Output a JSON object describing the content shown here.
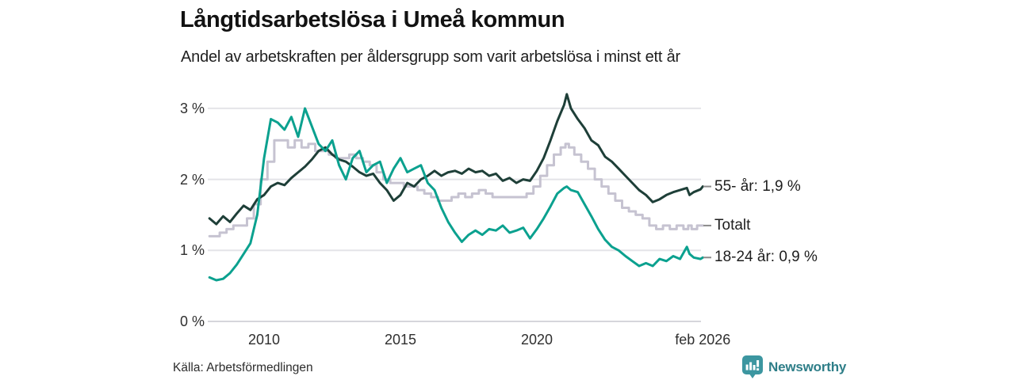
{
  "header": {
    "title": "Långtidsarbetslösa i Umeå kommun",
    "subtitle": "Andel av arbetskraften per åldersgrupp som varit arbetslösa i minst ett år"
  },
  "source": {
    "label": "Källa: Arbetsförmedlingen"
  },
  "brand": {
    "name": "Newsworthy",
    "icon": "newsworthy-chart-bubble-icon",
    "text_color": "#2e7e88",
    "icon_color": "#3c96a0"
  },
  "chart_data": {
    "type": "line",
    "title": "Långtidsarbetslösa i Umeå kommun",
    "subtitle": "Andel av arbetskraften per åldersgrupp som varit arbetslösa i minst ett år",
    "grid": true,
    "legend_position": "right",
    "y_axis": {
      "unit": "%",
      "range": [
        0,
        3.2
      ],
      "ticks": [
        {
          "value": 0,
          "label": "0 %"
        },
        {
          "value": 1,
          "label": "1 %"
        },
        {
          "value": 2,
          "label": "2 %"
        },
        {
          "value": 3,
          "label": "3 %"
        }
      ]
    },
    "x_axis": {
      "range": [
        2008.0,
        2026.083
      ],
      "ticks": [
        {
          "value": 2010,
          "label": "2010"
        },
        {
          "value": 2015,
          "label": "2015"
        },
        {
          "value": 2020,
          "label": "2020"
        },
        {
          "value": 2026.083,
          "label": "feb 2026"
        }
      ]
    },
    "x": [
      2008.0,
      2008.25,
      2008.5,
      2008.75,
      2009.0,
      2009.25,
      2009.5,
      2009.75,
      2010.0,
      2010.25,
      2010.5,
      2010.75,
      2011.0,
      2011.25,
      2011.5,
      2011.75,
      2012.0,
      2012.25,
      2012.5,
      2012.75,
      2013.0,
      2013.25,
      2013.5,
      2013.75,
      2014.0,
      2014.25,
      2014.5,
      2014.75,
      2015.0,
      2015.25,
      2015.5,
      2015.75,
      2016.0,
      2016.25,
      2016.5,
      2016.75,
      2017.0,
      2017.25,
      2017.5,
      2017.75,
      2018.0,
      2018.25,
      2018.5,
      2018.75,
      2019.0,
      2019.25,
      2019.5,
      2019.75,
      2020.0,
      2020.25,
      2020.5,
      2020.75,
      2021.0,
      2021.1,
      2021.25,
      2021.5,
      2021.75,
      2022.0,
      2022.25,
      2022.5,
      2022.75,
      2023.0,
      2023.25,
      2023.5,
      2023.75,
      2024.0,
      2024.25,
      2024.5,
      2024.75,
      2025.0,
      2025.25,
      2025.5,
      2025.6,
      2025.75,
      2026.0,
      2026.083
    ],
    "series": [
      {
        "name": "55- år",
        "legend": "55- år: 1,9 %",
        "end_value": 1.9,
        "color": "#1e3f38",
        "style": "line",
        "values": [
          1.45,
          1.37,
          1.48,
          1.4,
          1.52,
          1.63,
          1.57,
          1.72,
          1.78,
          1.9,
          1.95,
          1.92,
          2.02,
          2.1,
          2.18,
          2.28,
          2.4,
          2.45,
          2.35,
          2.28,
          2.25,
          2.18,
          2.1,
          2.05,
          2.08,
          1.95,
          1.85,
          1.7,
          1.78,
          1.95,
          1.9,
          2.0,
          2.05,
          2.12,
          2.05,
          2.1,
          2.12,
          2.08,
          2.15,
          2.1,
          2.12,
          2.05,
          2.08,
          1.98,
          2.02,
          1.95,
          2.0,
          1.98,
          2.12,
          2.3,
          2.55,
          2.82,
          3.05,
          3.2,
          3.0,
          2.85,
          2.72,
          2.55,
          2.48,
          2.32,
          2.25,
          2.15,
          2.05,
          1.95,
          1.85,
          1.78,
          1.68,
          1.72,
          1.78,
          1.82,
          1.85,
          1.88,
          1.78,
          1.82,
          1.86,
          1.9
        ]
      },
      {
        "name": "Totalt",
        "legend": "Totalt",
        "end_value": 1.35,
        "color": "#c6c3d1",
        "style": "step",
        "values": [
          1.2,
          1.2,
          1.25,
          1.3,
          1.35,
          1.35,
          1.45,
          1.65,
          2.0,
          2.25,
          2.55,
          2.55,
          2.45,
          2.55,
          2.45,
          2.5,
          2.4,
          2.4,
          2.35,
          2.3,
          2.3,
          2.35,
          2.3,
          2.25,
          2.2,
          2.1,
          2.0,
          1.95,
          1.95,
          1.9,
          1.9,
          1.85,
          1.8,
          1.75,
          1.7,
          1.7,
          1.75,
          1.8,
          1.75,
          1.8,
          1.85,
          1.8,
          1.75,
          1.75,
          1.75,
          1.75,
          1.75,
          1.8,
          1.9,
          2.05,
          2.2,
          2.35,
          2.45,
          2.5,
          2.45,
          2.35,
          2.25,
          2.15,
          2.0,
          1.9,
          1.8,
          1.7,
          1.6,
          1.55,
          1.5,
          1.45,
          1.35,
          1.3,
          1.35,
          1.3,
          1.35,
          1.3,
          1.35,
          1.3,
          1.35,
          1.35
        ]
      },
      {
        "name": "18-24 år",
        "legend": "18-24 år: 0,9 %",
        "end_value": 0.9,
        "color": "#0ba18f",
        "style": "line",
        "values": [
          0.62,
          0.58,
          0.6,
          0.68,
          0.8,
          0.95,
          1.1,
          1.5,
          2.3,
          2.85,
          2.8,
          2.7,
          2.88,
          2.6,
          3.0,
          2.75,
          2.5,
          2.4,
          2.55,
          2.2,
          2.0,
          2.3,
          2.4,
          2.1,
          2.2,
          2.25,
          1.95,
          2.15,
          2.3,
          2.1,
          2.15,
          2.2,
          1.95,
          1.85,
          1.6,
          1.4,
          1.25,
          1.12,
          1.22,
          1.28,
          1.22,
          1.3,
          1.28,
          1.35,
          1.25,
          1.28,
          1.32,
          1.17,
          1.3,
          1.45,
          1.62,
          1.8,
          1.88,
          1.9,
          1.85,
          1.82,
          1.65,
          1.48,
          1.3,
          1.15,
          1.05,
          1.0,
          0.92,
          0.85,
          0.78,
          0.82,
          0.78,
          0.88,
          0.85,
          0.92,
          0.88,
          1.05,
          0.95,
          0.9,
          0.88,
          0.9
        ]
      }
    ]
  }
}
